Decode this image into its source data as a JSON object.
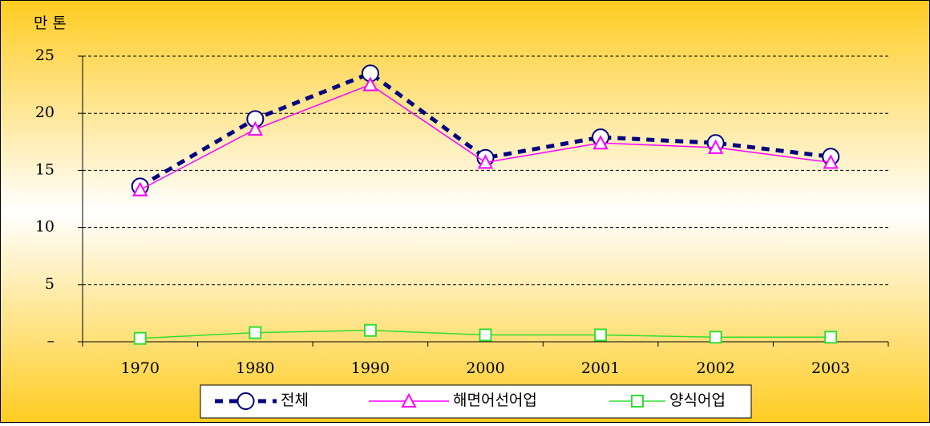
{
  "chart_data": {
    "type": "line",
    "y_label": "만 톤",
    "categories": [
      "1970",
      "1980",
      "1990",
      "2000",
      "2001",
      "2002",
      "2003"
    ],
    "series": [
      {
        "name": "전체",
        "color": "#000080",
        "marker": "circle",
        "dash": true,
        "values": [
          13.6,
          19.5,
          23.5,
          16.1,
          17.9,
          17.4,
          16.2
        ]
      },
      {
        "name": "해면어선어업",
        "color": "#ff00ff",
        "marker": "triangle",
        "dash": false,
        "values": [
          13.3,
          18.6,
          22.5,
          15.7,
          17.4,
          17.0,
          15.7
        ]
      },
      {
        "name": "양식어업",
        "color": "#33dd33",
        "marker": "square",
        "dash": false,
        "values": [
          0.3,
          0.8,
          1.0,
          0.6,
          0.6,
          0.4,
          0.4
        ]
      }
    ],
    "ylim": [
      0,
      25
    ],
    "yticks": [
      {
        "value": 0,
        "label": "–"
      },
      5,
      10,
      15,
      20,
      25
    ],
    "grid": true,
    "legend": "bottom"
  }
}
